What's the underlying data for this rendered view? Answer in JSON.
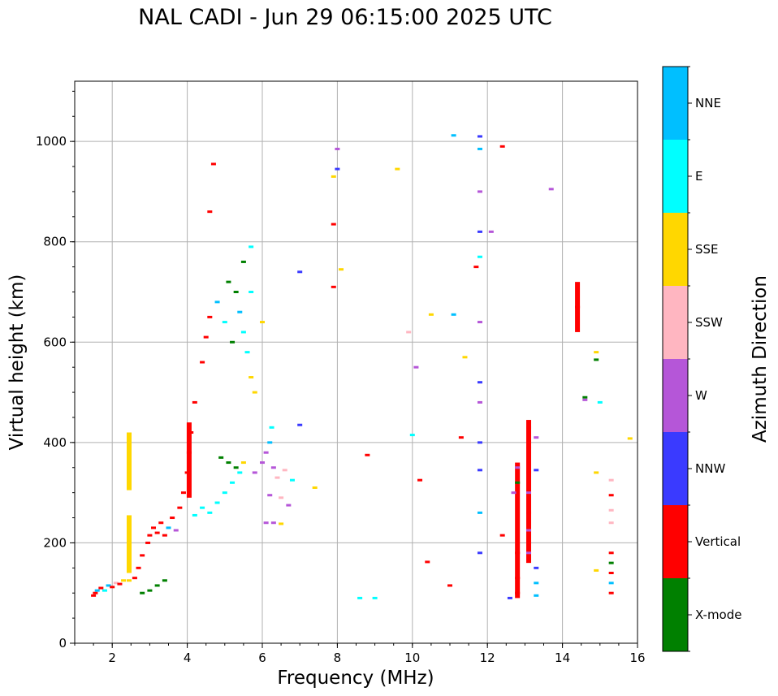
{
  "title": "NAL CADI - Jun 29 06:15:00 2025 UTC",
  "chart_data": {
    "type": "scatter",
    "title": "NAL CADI - Jun 29 06:15:00 2025 UTC",
    "xlabel": "Frequency (MHz)",
    "ylabel": "Virtual height (km)",
    "xlim": [
      1,
      16
    ],
    "ylim": [
      0,
      1120
    ],
    "x_ticks": [
      "2",
      "4",
      "6",
      "8",
      "10",
      "12",
      "14",
      "16"
    ],
    "y_ticks": [
      "0",
      "200",
      "400",
      "600",
      "800",
      "1000"
    ],
    "grid": true,
    "colorbar": {
      "label": "Azimuth Direction",
      "categories": [
        {
          "name": "X-mode",
          "color": "#008000"
        },
        {
          "name": "Vertical",
          "color": "#ff0000"
        },
        {
          "name": "NNW",
          "color": "#3a3aff"
        },
        {
          "name": "W",
          "color": "#b556d8"
        },
        {
          "name": "SSW",
          "color": "#ffb6c1"
        },
        {
          "name": "SSE",
          "color": "#ffd700"
        },
        {
          "name": "E",
          "color": "#00ffff"
        },
        {
          "name": "NNE",
          "color": "#00bfff"
        }
      ]
    },
    "marks": [
      {
        "f": 1.5,
        "h": 95,
        "cat": "Vertical"
      },
      {
        "f": 1.55,
        "h": 100,
        "cat": "Vertical"
      },
      {
        "f": 1.6,
        "h": 105,
        "cat": "NNE"
      },
      {
        "f": 1.7,
        "h": 110,
        "cat": "Vertical"
      },
      {
        "f": 1.8,
        "h": 105,
        "cat": "E"
      },
      {
        "f": 1.9,
        "h": 115,
        "cat": "NNE"
      },
      {
        "f": 2.0,
        "h": 112,
        "cat": "Vertical"
      },
      {
        "f": 2.1,
        "h": 120,
        "cat": "SSW"
      },
      {
        "f": 2.2,
        "h": 118,
        "cat": "Vertical"
      },
      {
        "f": 2.3,
        "h": 125,
        "cat": "SSE"
      },
      {
        "f": 2.45,
        "h": 125,
        "cat": "SSE"
      },
      {
        "f": 2.6,
        "h": 130,
        "cat": "Vertical"
      },
      {
        "f": 2.7,
        "h": 150,
        "cat": "Vertical"
      },
      {
        "f": 2.8,
        "h": 175,
        "cat": "Vertical"
      },
      {
        "f": 2.8,
        "h": 100,
        "cat": "X-mode"
      },
      {
        "f": 3.0,
        "h": 105,
        "cat": "X-mode"
      },
      {
        "f": 3.2,
        "h": 115,
        "cat": "X-mode"
      },
      {
        "f": 3.4,
        "h": 125,
        "cat": "X-mode"
      },
      {
        "f": 2.95,
        "h": 200,
        "cat": "Vertical"
      },
      {
        "f": 3.0,
        "h": 215,
        "cat": "Vertical"
      },
      {
        "f": 3.1,
        "h": 230,
        "cat": "Vertical"
      },
      {
        "f": 3.2,
        "h": 220,
        "cat": "Vertical"
      },
      {
        "f": 3.3,
        "h": 240,
        "cat": "Vertical"
      },
      {
        "f": 3.4,
        "h": 215,
        "cat": "Vertical"
      },
      {
        "f": 3.5,
        "h": 230,
        "cat": "NNE"
      },
      {
        "f": 3.6,
        "h": 250,
        "cat": "Vertical"
      },
      {
        "f": 3.7,
        "h": 225,
        "cat": "W"
      },
      {
        "f": 3.8,
        "h": 270,
        "cat": "Vertical"
      },
      {
        "f": 3.9,
        "h": 300,
        "cat": "Vertical"
      },
      {
        "f": 4.0,
        "h": 340,
        "cat": "Vertical"
      },
      {
        "f": 4.05,
        "h": 380,
        "cat": "Vertical"
      },
      {
        "f": 4.1,
        "h": 420,
        "cat": "Vertical"
      },
      {
        "f": 4.2,
        "h": 480,
        "cat": "Vertical"
      },
      {
        "f": 4.2,
        "h": 255,
        "cat": "E"
      },
      {
        "f": 4.4,
        "h": 270,
        "cat": "E"
      },
      {
        "f": 4.6,
        "h": 260,
        "cat": "E"
      },
      {
        "f": 4.8,
        "h": 280,
        "cat": "E"
      },
      {
        "f": 5.0,
        "h": 300,
        "cat": "E"
      },
      {
        "f": 5.2,
        "h": 320,
        "cat": "E"
      },
      {
        "f": 5.4,
        "h": 340,
        "cat": "E"
      },
      {
        "f": 5.5,
        "h": 360,
        "cat": "SSE"
      },
      {
        "f": 4.9,
        "h": 370,
        "cat": "X-mode"
      },
      {
        "f": 5.1,
        "h": 360,
        "cat": "X-mode"
      },
      {
        "f": 5.3,
        "h": 350,
        "cat": "X-mode"
      },
      {
        "f": 5.8,
        "h": 340,
        "cat": "W"
      },
      {
        "f": 6.0,
        "h": 360,
        "cat": "W"
      },
      {
        "f": 6.1,
        "h": 380,
        "cat": "W"
      },
      {
        "f": 6.2,
        "h": 400,
        "cat": "NNE"
      },
      {
        "f": 6.25,
        "h": 430,
        "cat": "E"
      },
      {
        "f": 6.3,
        "h": 350,
        "cat": "W"
      },
      {
        "f": 6.4,
        "h": 330,
        "cat": "SSW"
      },
      {
        "f": 6.6,
        "h": 345,
        "cat": "SSW"
      },
      {
        "f": 6.8,
        "h": 325,
        "cat": "E"
      },
      {
        "f": 6.1,
        "h": 240,
        "cat": "W"
      },
      {
        "f": 6.3,
        "h": 240,
        "cat": "W"
      },
      {
        "f": 6.5,
        "h": 238,
        "cat": "SSE"
      },
      {
        "f": 6.2,
        "h": 295,
        "cat": "W"
      },
      {
        "f": 6.5,
        "h": 290,
        "cat": "SSW"
      },
      {
        "f": 6.7,
        "h": 275,
        "cat": "W"
      },
      {
        "f": 4.4,
        "h": 560,
        "cat": "Vertical"
      },
      {
        "f": 4.5,
        "h": 610,
        "cat": "Vertical"
      },
      {
        "f": 4.6,
        "h": 650,
        "cat": "Vertical"
      },
      {
        "f": 4.8,
        "h": 680,
        "cat": "NNE"
      },
      {
        "f": 5.0,
        "h": 640,
        "cat": "E"
      },
      {
        "f": 5.2,
        "h": 600,
        "cat": "X-mode"
      },
      {
        "f": 5.3,
        "h": 700,
        "cat": "X-mode"
      },
      {
        "f": 5.4,
        "h": 660,
        "cat": "NNE"
      },
      {
        "f": 5.5,
        "h": 620,
        "cat": "E"
      },
      {
        "f": 5.6,
        "h": 580,
        "cat": "E"
      },
      {
        "f": 5.7,
        "h": 700,
        "cat": "E"
      },
      {
        "f": 5.1,
        "h": 720,
        "cat": "X-mode"
      },
      {
        "f": 5.5,
        "h": 760,
        "cat": "X-mode"
      },
      {
        "f": 5.7,
        "h": 790,
        "cat": "E"
      },
      {
        "f": 4.6,
        "h": 860,
        "cat": "Vertical"
      },
      {
        "f": 4.7,
        "h": 955,
        "cat": "Vertical"
      },
      {
        "f": 5.8,
        "h": 500,
        "cat": "SSE"
      },
      {
        "f": 6.0,
        "h": 640,
        "cat": "SSE"
      },
      {
        "f": 5.7,
        "h": 530,
        "cat": "SSE"
      },
      {
        "f": 2.45,
        "h": 360,
        "cat": "SSE"
      },
      {
        "f": 2.45,
        "h": 200,
        "cat": "SSE"
      },
      {
        "f": 7.0,
        "h": 435,
        "cat": "NNW"
      },
      {
        "f": 7.0,
        "h": 740,
        "cat": "NNW"
      },
      {
        "f": 7.4,
        "h": 310,
        "cat": "SSE"
      },
      {
        "f": 7.9,
        "h": 710,
        "cat": "Vertical"
      },
      {
        "f": 7.9,
        "h": 835,
        "cat": "Vertical"
      },
      {
        "f": 7.9,
        "h": 930,
        "cat": "SSE"
      },
      {
        "f": 8.0,
        "h": 985,
        "cat": "W"
      },
      {
        "f": 8.0,
        "h": 945,
        "cat": "NNW"
      },
      {
        "f": 8.1,
        "h": 745,
        "cat": "SSE"
      },
      {
        "f": 8.6,
        "h": 90,
        "cat": "E"
      },
      {
        "f": 9.0,
        "h": 90,
        "cat": "E"
      },
      {
        "f": 8.8,
        "h": 375,
        "cat": "Vertical"
      },
      {
        "f": 9.6,
        "h": 945,
        "cat": "SSE"
      },
      {
        "f": 9.9,
        "h": 620,
        "cat": "SSW"
      },
      {
        "f": 10.0,
        "h": 415,
        "cat": "E"
      },
      {
        "f": 10.1,
        "h": 550,
        "cat": "W"
      },
      {
        "f": 10.2,
        "h": 325,
        "cat": "Vertical"
      },
      {
        "f": 10.4,
        "h": 162,
        "cat": "Vertical"
      },
      {
        "f": 10.5,
        "h": 655,
        "cat": "SSE"
      },
      {
        "f": 11.1,
        "h": 1012,
        "cat": "NNE"
      },
      {
        "f": 11.1,
        "h": 655,
        "cat": "NNE"
      },
      {
        "f": 11.4,
        "h": 570,
        "cat": "SSE"
      },
      {
        "f": 11.3,
        "h": 410,
        "cat": "Vertical"
      },
      {
        "f": 11.0,
        "h": 115,
        "cat": "Vertical"
      },
      {
        "f": 11.8,
        "h": 1010,
        "cat": "NNW"
      },
      {
        "f": 11.8,
        "h": 985,
        "cat": "NNE"
      },
      {
        "f": 11.8,
        "h": 900,
        "cat": "W"
      },
      {
        "f": 11.8,
        "h": 820,
        "cat": "NNW"
      },
      {
        "f": 11.8,
        "h": 770,
        "cat": "E"
      },
      {
        "f": 11.8,
        "h": 640,
        "cat": "W"
      },
      {
        "f": 11.8,
        "h": 520,
        "cat": "NNW"
      },
      {
        "f": 11.8,
        "h": 480,
        "cat": "W"
      },
      {
        "f": 11.8,
        "h": 400,
        "cat": "NNW"
      },
      {
        "f": 11.8,
        "h": 345,
        "cat": "NNW"
      },
      {
        "f": 11.8,
        "h": 260,
        "cat": "NNE"
      },
      {
        "f": 11.8,
        "h": 180,
        "cat": "NNW"
      },
      {
        "f": 11.7,
        "h": 750,
        "cat": "Vertical"
      },
      {
        "f": 12.1,
        "h": 820,
        "cat": "W"
      },
      {
        "f": 12.4,
        "h": 990,
        "cat": "Vertical"
      },
      {
        "f": 12.4,
        "h": 215,
        "cat": "Vertical"
      },
      {
        "f": 12.7,
        "h": 300,
        "cat": "W"
      },
      {
        "f": 12.8,
        "h": 180,
        "cat": "Vertical"
      },
      {
        "f": 12.8,
        "h": 130,
        "cat": "Vertical"
      },
      {
        "f": 12.8,
        "h": 320,
        "cat": "X-mode"
      },
      {
        "f": 12.8,
        "h": 350,
        "cat": "W"
      },
      {
        "f": 12.8,
        "h": 100,
        "cat": "Vertical"
      },
      {
        "f": 12.6,
        "h": 90,
        "cat": "NNW"
      },
      {
        "f": 13.1,
        "h": 430,
        "cat": "Vertical"
      },
      {
        "f": 13.1,
        "h": 390,
        "cat": "Vertical"
      },
      {
        "f": 13.1,
        "h": 340,
        "cat": "Vertical"
      },
      {
        "f": 13.1,
        "h": 300,
        "cat": "W"
      },
      {
        "f": 13.1,
        "h": 260,
        "cat": "Vertical"
      },
      {
        "f": 13.1,
        "h": 225,
        "cat": "W"
      },
      {
        "f": 13.1,
        "h": 180,
        "cat": "W"
      },
      {
        "f": 13.3,
        "h": 410,
        "cat": "W"
      },
      {
        "f": 13.3,
        "h": 345,
        "cat": "NNW"
      },
      {
        "f": 13.3,
        "h": 150,
        "cat": "NNW"
      },
      {
        "f": 13.3,
        "h": 120,
        "cat": "NNE"
      },
      {
        "f": 13.3,
        "h": 95,
        "cat": "NNE"
      },
      {
        "f": 13.7,
        "h": 905,
        "cat": "W"
      },
      {
        "f": 14.4,
        "h": 670,
        "cat": "Vertical"
      },
      {
        "f": 14.6,
        "h": 490,
        "cat": "X-mode"
      },
      {
        "f": 14.6,
        "h": 485,
        "cat": "W"
      },
      {
        "f": 14.9,
        "h": 580,
        "cat": "SSE"
      },
      {
        "f": 14.9,
        "h": 565,
        "cat": "X-mode"
      },
      {
        "f": 15.0,
        "h": 480,
        "cat": "E"
      },
      {
        "f": 14.9,
        "h": 340,
        "cat": "SSE"
      },
      {
        "f": 14.9,
        "h": 145,
        "cat": "SSE"
      },
      {
        "f": 15.3,
        "h": 325,
        "cat": "SSW"
      },
      {
        "f": 15.3,
        "h": 295,
        "cat": "Vertical"
      },
      {
        "f": 15.3,
        "h": 265,
        "cat": "SSW"
      },
      {
        "f": 15.3,
        "h": 240,
        "cat": "SSW"
      },
      {
        "f": 15.3,
        "h": 180,
        "cat": "Vertical"
      },
      {
        "f": 15.3,
        "h": 160,
        "cat": "X-mode"
      },
      {
        "f": 15.3,
        "h": 140,
        "cat": "Vertical"
      },
      {
        "f": 15.3,
        "h": 120,
        "cat": "NNE"
      },
      {
        "f": 15.3,
        "h": 100,
        "cat": "Vertical"
      },
      {
        "f": 15.8,
        "h": 408,
        "cat": "SSE"
      }
    ],
    "bars": [
      {
        "f": 2.45,
        "h1": 305,
        "h2": 420,
        "cat": "SSE"
      },
      {
        "f": 2.45,
        "h1": 140,
        "h2": 255,
        "cat": "SSE"
      },
      {
        "f": 4.05,
        "h1": 290,
        "h2": 440,
        "cat": "Vertical"
      },
      {
        "f": 12.8,
        "h1": 90,
        "h2": 360,
        "cat": "Vertical"
      },
      {
        "f": 13.1,
        "h1": 160,
        "h2": 445,
        "cat": "Vertical"
      },
      {
        "f": 14.4,
        "h1": 620,
        "h2": 720,
        "cat": "Vertical"
      }
    ]
  }
}
